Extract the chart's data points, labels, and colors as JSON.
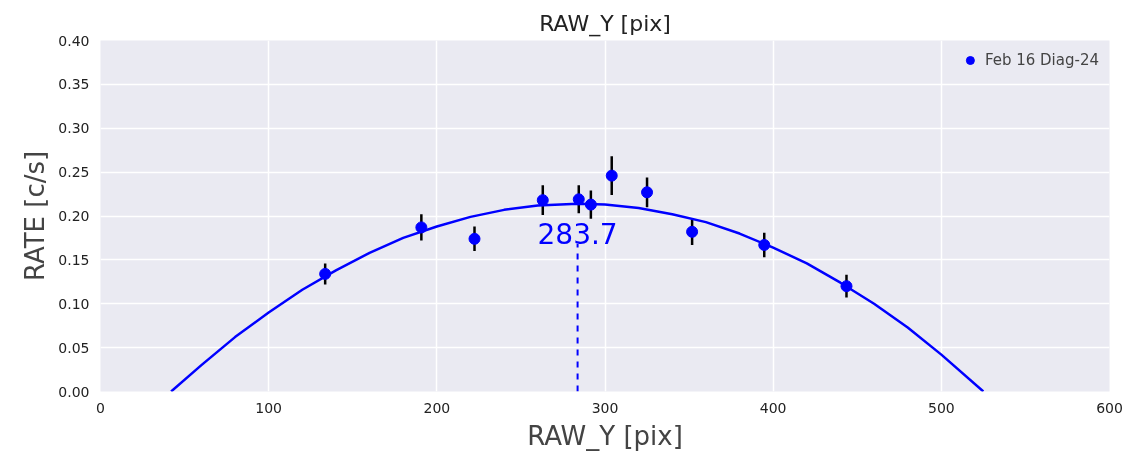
{
  "chart_data": {
    "type": "scatter",
    "title": "RAW_Y [pix]",
    "xlabel": "RAW_Y [pix]",
    "ylabel": "RATE [c/s]",
    "xlim": [
      0,
      600
    ],
    "xticks": [
      0,
      100,
      200,
      300,
      400,
      500,
      600
    ],
    "ylim": [
      0,
      0.4
    ],
    "yticks": [
      {
        "value": 0,
        "label": "0.00"
      },
      {
        "value": 0.05,
        "label": "0.05"
      },
      {
        "value": 0.1,
        "label": "0.10"
      },
      {
        "value": 0.15,
        "label": "0.15"
      },
      {
        "value": 0.2,
        "label": "0.20"
      },
      {
        "value": 0.25,
        "label": "0.25"
      },
      {
        "value": 0.3,
        "label": "0.30"
      },
      {
        "value": 0.35,
        "label": "0.35"
      },
      {
        "value": 0.4,
        "label": "0.40"
      }
    ],
    "grid": true,
    "legend": "top right",
    "series": [
      {
        "name": "Feb 16 Diag-24",
        "marker": "circle",
        "color": "#0000ff",
        "x": [
          133.6,
          190.8,
          222.4,
          263,
          284.4,
          291.6,
          304,
          325,
          351.8,
          394.7,
          443.6
        ],
        "values": [
          0.134,
          0.187,
          0.174,
          0.218,
          0.219,
          0.213,
          0.246,
          0.227,
          0.182,
          0.167,
          0.12
        ],
        "errors": [
          0.012,
          0.015,
          0.014,
          0.017,
          0.016,
          0.016,
          0.022,
          0.017,
          0.015,
          0.014,
          0.013
        ]
      },
      {
        "type": "line",
        "color": "#0000ff",
        "x": [
          42,
          60,
          80,
          100,
          120,
          140,
          160,
          180,
          200,
          220,
          240,
          260,
          283.7,
          300,
          320,
          340,
          360,
          380,
          400,
          420,
          440,
          460,
          480,
          500,
          525
        ],
        "values": [
          0,
          0.03,
          0.062,
          0.09,
          0.116,
          0.138,
          0.158,
          0.175,
          0.188,
          0.199,
          0.207,
          0.212,
          0.214,
          0.213,
          0.209,
          0.202,
          0.193,
          0.18,
          0.164,
          0.146,
          0.124,
          0.1,
          0.073,
          0.042,
          0
        ]
      }
    ],
    "ref_lines": [
      {
        "axis": "x",
        "value": 283.7,
        "label": "283.7",
        "color": "#0000ff",
        "line_style": "dashed"
      }
    ]
  }
}
